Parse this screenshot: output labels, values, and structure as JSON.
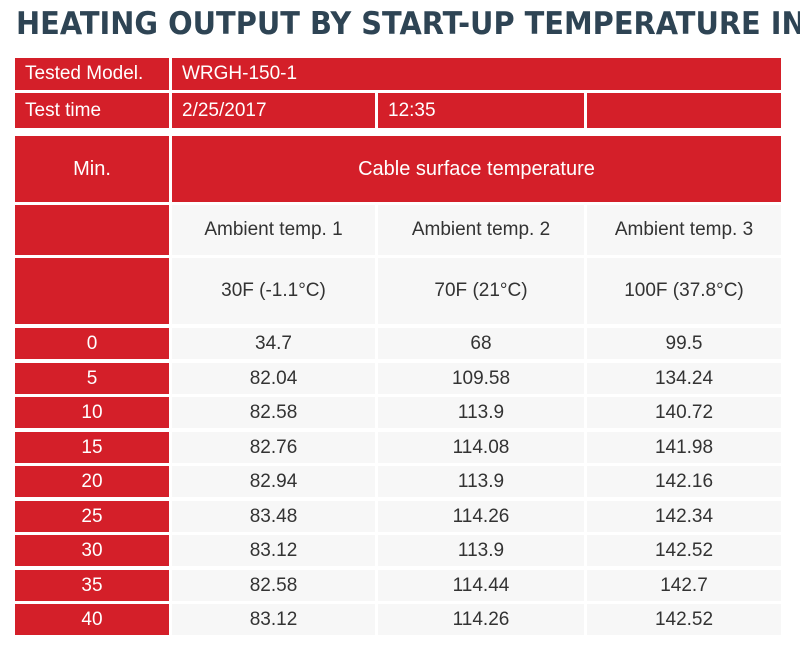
{
  "title": "HEATING OUTPUT BY START-UP TEMPERATURE IN F",
  "info": {
    "model_label": "Tested Model.",
    "model_value": "WRGH-150-1",
    "time_label": "Test time",
    "date_value": "2/25/2017",
    "time_value": "12:35",
    "extra_value": ""
  },
  "header": {
    "min_label": "Min.",
    "group_label": "Cable surface temperature",
    "ambient_labels": [
      "Ambient temp. 1",
      "Ambient temp. 2",
      "Ambient temp. 3"
    ],
    "ambient_values": [
      "30F (-1.1°C)",
      "70F (21°C)",
      "100F (37.8°C)"
    ]
  },
  "colors": {
    "accent": "#d41f29",
    "title": "#2e4454",
    "cell": "#f7f7f7"
  },
  "chart_data": {
    "type": "table",
    "title": "HEATING OUTPUT BY START-UP TEMPERATURE IN F",
    "columns": [
      "Min.",
      "Ambient temp. 1",
      "Ambient temp. 2",
      "Ambient temp. 3"
    ],
    "rows": [
      [
        "0",
        "34.7",
        "68",
        "99.5"
      ],
      [
        "5",
        "82.04",
        "109.58",
        "134.24"
      ],
      [
        "10",
        "82.58",
        "113.9",
        "140.72"
      ],
      [
        "15",
        "82.76",
        "114.08",
        "141.98"
      ],
      [
        "20",
        "82.94",
        "113.9",
        "142.16"
      ],
      [
        "25",
        "83.48",
        "114.26",
        "142.34"
      ],
      [
        "30",
        "83.12",
        "113.9",
        "142.52"
      ],
      [
        "35",
        "82.58",
        "114.44",
        "142.7"
      ],
      [
        "40",
        "83.12",
        "114.26",
        "142.52"
      ]
    ]
  }
}
